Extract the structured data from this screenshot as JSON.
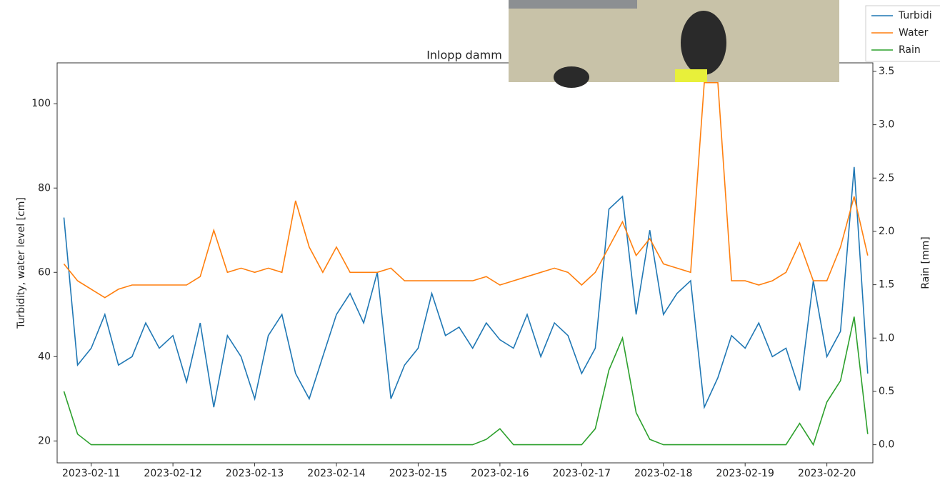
{
  "chart_data": {
    "type": "line",
    "title": "Inlopp damm",
    "y_label": "Turbidity, water level [cm]",
    "y2_label": "Rain [mm]",
    "x": [
      "2023-02-10T16:00",
      "2023-02-10T20:00",
      "2023-02-11T00:00",
      "2023-02-11T04:00",
      "2023-02-11T08:00",
      "2023-02-11T12:00",
      "2023-02-11T16:00",
      "2023-02-11T20:00",
      "2023-02-12T00:00",
      "2023-02-12T04:00",
      "2023-02-12T08:00",
      "2023-02-12T12:00",
      "2023-02-12T16:00",
      "2023-02-12T20:00",
      "2023-02-13T00:00",
      "2023-02-13T04:00",
      "2023-02-13T08:00",
      "2023-02-13T12:00",
      "2023-02-13T16:00",
      "2023-02-13T20:00",
      "2023-02-14T00:00",
      "2023-02-14T04:00",
      "2023-02-14T08:00",
      "2023-02-14T12:00",
      "2023-02-14T16:00",
      "2023-02-14T20:00",
      "2023-02-15T00:00",
      "2023-02-15T04:00",
      "2023-02-15T08:00",
      "2023-02-15T12:00",
      "2023-02-15T16:00",
      "2023-02-15T20:00",
      "2023-02-16T00:00",
      "2023-02-16T04:00",
      "2023-02-16T08:00",
      "2023-02-16T12:00",
      "2023-02-16T16:00",
      "2023-02-16T20:00",
      "2023-02-17T00:00",
      "2023-02-17T04:00",
      "2023-02-17T08:00",
      "2023-02-17T12:00",
      "2023-02-17T16:00",
      "2023-02-17T20:00",
      "2023-02-18T00:00",
      "2023-02-18T04:00",
      "2023-02-18T08:00",
      "2023-02-18T12:00",
      "2023-02-18T16:00",
      "2023-02-18T20:00",
      "2023-02-19T00:00",
      "2023-02-19T04:00",
      "2023-02-19T08:00",
      "2023-02-19T12:00",
      "2023-02-19T16:00",
      "2023-02-19T20:00",
      "2023-02-20T00:00",
      "2023-02-20T04:00",
      "2023-02-20T08:00",
      "2023-02-20T12:00"
    ],
    "series": [
      {
        "name": "Turbidi",
        "color": "#1f77b4",
        "values": [
          73,
          38,
          42,
          50,
          38,
          40,
          48,
          42,
          45,
          34,
          48,
          28,
          45,
          40,
          30,
          45,
          50,
          36,
          30,
          40,
          50,
          55,
          48,
          60,
          30,
          38,
          42,
          55,
          45,
          47,
          42,
          48,
          44,
          42,
          50,
          40,
          48,
          45,
          36,
          42,
          75,
          78,
          50,
          70,
          50,
          55,
          58,
          28,
          35,
          45,
          42,
          48,
          40,
          42,
          32,
          58,
          40,
          46,
          85,
          36
        ]
      },
      {
        "name": "Water",
        "color": "#ff7f0e",
        "values": [
          62,
          58,
          56,
          54,
          56,
          57,
          57,
          57,
          57,
          57,
          59,
          70,
          60,
          61,
          60,
          61,
          60,
          77,
          66,
          60,
          66,
          60,
          60,
          60,
          61,
          58,
          58,
          58,
          58,
          58,
          58,
          59,
          57,
          58,
          59,
          60,
          61,
          60,
          57,
          60,
          66,
          72,
          64,
          68,
          62,
          61,
          60,
          105,
          105,
          58,
          58,
          57,
          58,
          60,
          67,
          58,
          58,
          66,
          78,
          64
        ]
      },
      {
        "name": "Rain",
        "color": "#2ca02c",
        "axis": "y2",
        "values": [
          0.5,
          0.1,
          0,
          0,
          0,
          0,
          0,
          0,
          0,
          0,
          0,
          0,
          0,
          0,
          0,
          0,
          0,
          0,
          0,
          0,
          0,
          0,
          0,
          0,
          0,
          0,
          0,
          0,
          0,
          0,
          0,
          0.05,
          0.15,
          0,
          0,
          0,
          0,
          0,
          0,
          0.15,
          0.7,
          1.0,
          0.3,
          0.05,
          0,
          0,
          0,
          0,
          0,
          0,
          0,
          0,
          0,
          0,
          0.2,
          0,
          0.4,
          0.6,
          1.2,
          0.1
        ]
      }
    ],
    "xlim": [
      "2023-02-10T14:00",
      "2023-02-20T13:30"
    ],
    "xticks": [
      "2023-02-11",
      "2023-02-12",
      "2023-02-13",
      "2023-02-14",
      "2023-02-15",
      "2023-02-16",
      "2023-02-17",
      "2023-02-18",
      "2023-02-19",
      "2023-02-20"
    ],
    "ylim": [
      14.8,
      109.7
    ],
    "yticks": [
      20,
      40,
      60,
      80,
      100
    ],
    "y2lim": [
      -0.17,
      3.58
    ],
    "y2ticks": [
      {
        "value": 0,
        "label": "0.0"
      },
      0.5,
      {
        "value": 1,
        "label": "1.0"
      },
      1.5,
      {
        "value": 2,
        "label": "2.0"
      },
      2.5,
      {
        "value": 3,
        "label": "3.0"
      },
      3.5
    ],
    "legend": "upper right"
  }
}
